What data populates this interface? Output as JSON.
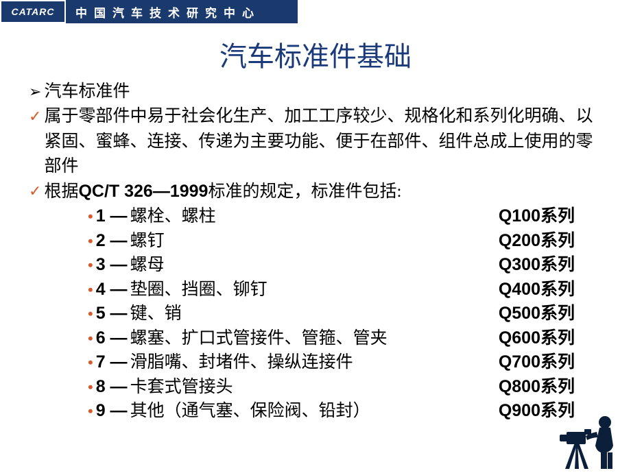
{
  "header": {
    "logo_text": "CATARC",
    "org_title": "中国汽车技术研究中心"
  },
  "slide_title": "汽车标准件基础",
  "section_heading": "汽车标准件",
  "check_lines": [
    "属于零部件中易于社会化生产、加工工序较少、规格化和系列化明确、以紧固、蜜蜂、连接、传递为主要功能、便于在部件、组件总成上使用的零部件",
    "根据<span class=\"bold-inline\">QC/T 326—1999</span>标准的规定，标准件包括:"
  ],
  "list_items": [
    {
      "num": "1",
      "label": "螺栓、螺柱",
      "series_code": "Q100",
      "series_suffix": "系列"
    },
    {
      "num": "2",
      "label": "螺钉",
      "series_code": "Q200",
      "series_suffix": "系列"
    },
    {
      "num": "3",
      "label": "螺母",
      "series_code": "Q300",
      "series_suffix": "系列"
    },
    {
      "num": "4",
      "label": "垫圈、挡圈、铆钉",
      "series_code": "Q400",
      "series_suffix": "系列"
    },
    {
      "num": "5",
      "label": "键、销",
      "series_code": "Q500",
      "series_suffix": "系列"
    },
    {
      "num": "6",
      "label": "螺塞、扩口式管接件、管箍、管夹",
      "series_code": "Q600",
      "series_suffix": "系列"
    },
    {
      "num": "7",
      "label": "滑脂嘴、封堵件、操纵连接件",
      "series_code": "Q700",
      "series_suffix": "系列"
    },
    {
      "num": "8",
      "label": "卡套式管接头",
      "series_code": "Q800",
      "series_suffix": "系列"
    },
    {
      "num": "9",
      "label": "其他（通气塞、保险阀、铅封）",
      "series_code": "Q900",
      "series_suffix": "系列"
    }
  ],
  "colors": {
    "header_bg": "#1a3a6e",
    "title_color": "#1a3a7a",
    "accent": "#d85a2a",
    "silhouette": "#0b1f3a"
  }
}
